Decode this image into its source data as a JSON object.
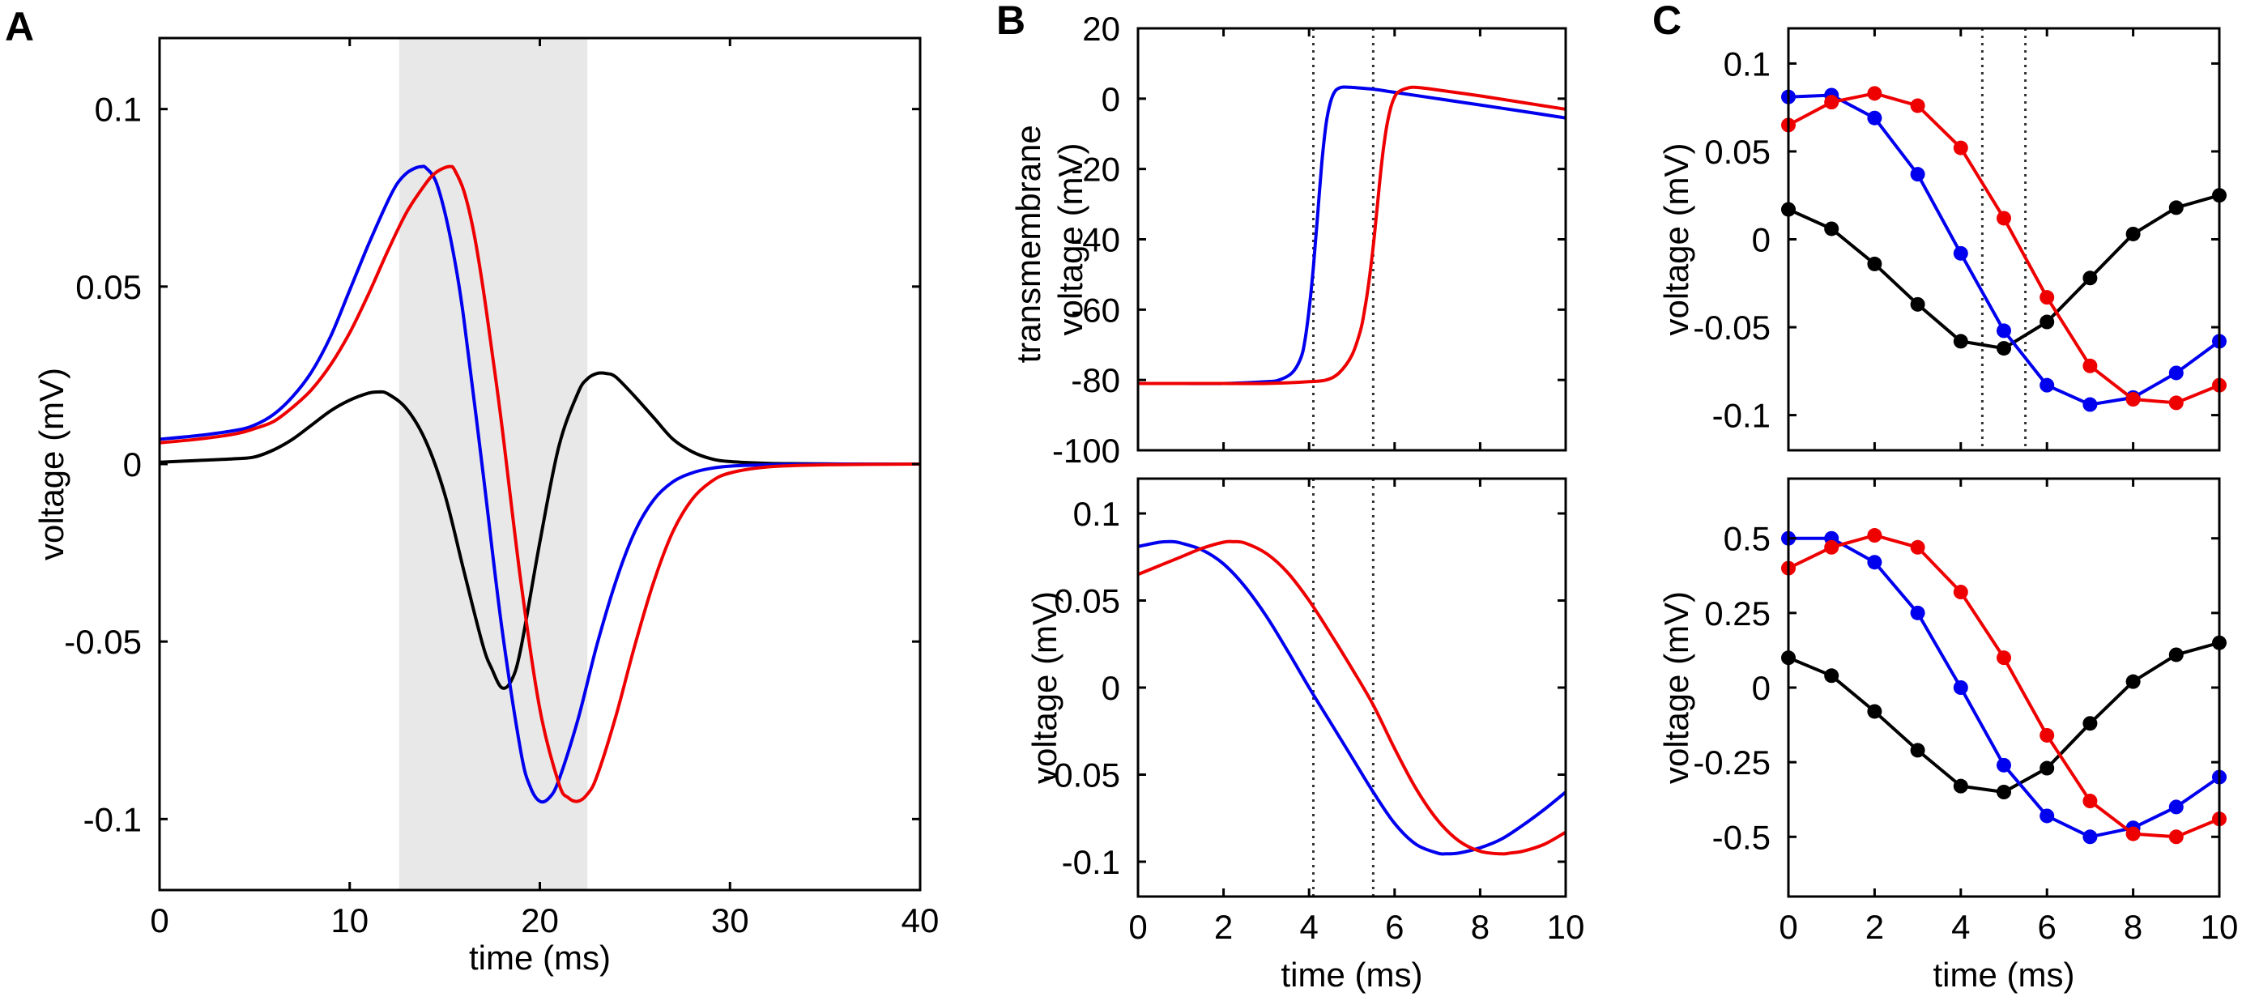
{
  "panels": {
    "A": {
      "letter": "A"
    },
    "B": {
      "letter": "B"
    },
    "C": {
      "letter": "C"
    }
  },
  "colors": {
    "black": "#000000",
    "blue": "#0000ee",
    "red": "#ee0000",
    "shade": "#e8e8e8",
    "dotted": "#333333"
  },
  "chart_data": [
    {
      "id": "A",
      "type": "line",
      "xlabel": "time (ms)",
      "ylabel": "voltage (mV)",
      "xlim": [
        0,
        40
      ],
      "ylim": [
        -0.12,
        0.12
      ],
      "xticks": [
        0,
        10,
        20,
        30,
        40
      ],
      "xtick_labels": [
        "0",
        "10",
        "20",
        "30",
        "40"
      ],
      "yticks": [
        -0.1,
        -0.05,
        0,
        0.05,
        0.1
      ],
      "ytick_labels": [
        "-0.1",
        "-0.05",
        "0",
        "0.05",
        "0.1"
      ],
      "shaded_region": [
        12.6,
        22.5
      ],
      "series": [
        {
          "name": "black",
          "color": "black",
          "x": [
            0,
            2,
            4,
            5,
            6,
            7,
            8,
            9,
            10,
            11,
            11.5,
            12,
            13,
            14,
            15,
            16,
            17,
            17.5,
            18,
            18.5,
            19,
            20,
            21,
            22,
            22.5,
            23,
            23.5,
            24,
            25,
            26,
            27,
            28,
            29,
            30,
            32,
            34,
            36,
            40
          ],
          "y": [
            0.0005,
            0.001,
            0.0015,
            0.002,
            0.004,
            0.007,
            0.011,
            0.015,
            0.018,
            0.02,
            0.0203,
            0.0198,
            0.0155,
            0.0065,
            -0.0085,
            -0.03,
            -0.051,
            -0.058,
            -0.063,
            -0.061,
            -0.052,
            -0.022,
            0.005,
            0.02,
            0.024,
            0.0255,
            0.0255,
            0.0245,
            0.019,
            0.013,
            0.007,
            0.0035,
            0.0015,
            0.0007,
            0.0002,
            0.0001,
            0,
            0
          ]
        },
        {
          "name": "blue",
          "color": "blue",
          "x": [
            0,
            2,
            4,
            5,
            6,
            7,
            8,
            9,
            10,
            11,
            12,
            12.5,
            13,
            13.5,
            13.8,
            14,
            14.5,
            15,
            15.5,
            16,
            17,
            18,
            19,
            19.5,
            20,
            20.5,
            21,
            22,
            23,
            24,
            25,
            26,
            27,
            28,
            29,
            30,
            32,
            35,
            40
          ],
          "y": [
            0.007,
            0.008,
            0.0095,
            0.011,
            0.014,
            0.019,
            0.026,
            0.036,
            0.049,
            0.062,
            0.074,
            0.079,
            0.082,
            0.0835,
            0.0838,
            0.0835,
            0.08,
            0.071,
            0.058,
            0.041,
            -0.002,
            -0.046,
            -0.081,
            -0.091,
            -0.095,
            -0.094,
            -0.089,
            -0.072,
            -0.051,
            -0.033,
            -0.019,
            -0.01,
            -0.005,
            -0.0025,
            -0.0012,
            -0.0006,
            -0.0002,
            0,
            0
          ]
        },
        {
          "name": "red",
          "color": "red",
          "x": [
            0,
            2,
            4,
            5,
            6,
            7,
            8,
            9,
            10,
            11,
            12,
            13,
            14,
            14.5,
            15,
            15.3,
            15.5,
            16,
            16.5,
            17,
            17.5,
            18,
            19,
            20,
            21,
            21.5,
            22,
            22.5,
            23,
            24,
            25,
            26,
            27,
            28,
            29,
            30,
            32,
            35,
            40
          ],
          "y": [
            0.006,
            0.007,
            0.0085,
            0.01,
            0.012,
            0.016,
            0.021,
            0.028,
            0.037,
            0.048,
            0.06,
            0.071,
            0.079,
            0.082,
            0.0835,
            0.0838,
            0.083,
            0.077,
            0.066,
            0.05,
            0.031,
            0.011,
            -0.033,
            -0.069,
            -0.09,
            -0.094,
            -0.095,
            -0.093,
            -0.088,
            -0.071,
            -0.051,
            -0.033,
            -0.019,
            -0.01,
            -0.005,
            -0.0025,
            -0.0008,
            -0.0002,
            0
          ]
        }
      ]
    },
    {
      "id": "B_top",
      "type": "line",
      "xlabel": "",
      "ylabel": "transmembrane voltage (mV)",
      "ylabel_lines": [
        "transmembrane",
        "voltage (mV)"
      ],
      "xlim": [
        0,
        10
      ],
      "ylim": [
        -100,
        20
      ],
      "xticks": [
        0,
        2,
        4,
        6,
        8,
        10
      ],
      "xtick_labels": [
        "",
        "",
        "",
        "",
        "",
        ""
      ],
      "yticks": [
        -100,
        -80,
        -60,
        -40,
        -20,
        0,
        20
      ],
      "ytick_labels": [
        "-100",
        "-80",
        "-60",
        "-40",
        "-20",
        "0",
        "20"
      ],
      "vlines": [
        4.1,
        5.5
      ],
      "series": [
        {
          "name": "blue",
          "color": "blue",
          "x": [
            0,
            1,
            2,
            3,
            3.3,
            3.6,
            3.8,
            3.9,
            4.0,
            4.1,
            4.2,
            4.3,
            4.4,
            4.5,
            4.6,
            4.7,
            4.8,
            5.0,
            5.5,
            6,
            7,
            8,
            9,
            10
          ],
          "y": [
            -81,
            -81,
            -81,
            -80.5,
            -80,
            -78,
            -74,
            -69,
            -60,
            -48,
            -33,
            -18,
            -7,
            -1,
            2,
            3,
            3.3,
            3.2,
            2.7,
            1.8,
            0,
            -1.8,
            -3.6,
            -5.5
          ]
        },
        {
          "name": "red",
          "color": "red",
          "x": [
            0,
            1,
            2,
            3,
            4,
            4.4,
            4.7,
            5.0,
            5.2,
            5.3,
            5.4,
            5.5,
            5.6,
            5.7,
            5.8,
            5.9,
            6.0,
            6.1,
            6.3,
            6.5,
            7,
            8,
            9,
            10
          ],
          "y": [
            -81,
            -81,
            -81,
            -81,
            -80.5,
            -80,
            -78,
            -73,
            -66,
            -60,
            -52,
            -42,
            -30,
            -18,
            -9,
            -3,
            0.5,
            2,
            3,
            3.2,
            2.5,
            0.8,
            -1.1,
            -3
          ]
        }
      ]
    },
    {
      "id": "B_bottom",
      "type": "line",
      "xlabel": "time (ms)",
      "ylabel": "voltage (mV)",
      "xlim": [
        0,
        10
      ],
      "ylim": [
        -0.12,
        0.12
      ],
      "xticks": [
        0,
        2,
        4,
        6,
        8,
        10
      ],
      "xtick_labels": [
        "0",
        "2",
        "4",
        "6",
        "8",
        "10"
      ],
      "yticks": [
        -0.1,
        -0.05,
        0,
        0.05,
        0.1
      ],
      "ytick_labels": [
        "-0.1",
        "-0.05",
        "0",
        "0.05",
        "0.1"
      ],
      "vlines": [
        4.1,
        5.5
      ],
      "series": [
        {
          "name": "blue",
          "color": "blue",
          "x": [
            0,
            0.5,
            0.8,
            1,
            1.5,
            2,
            2.5,
            3,
            3.5,
            4,
            4.5,
            5,
            5.5,
            6,
            6.5,
            7,
            7.2,
            7.5,
            8,
            8.5,
            9,
            9.5,
            10
          ],
          "y": [
            0.081,
            0.0835,
            0.0838,
            0.083,
            0.079,
            0.071,
            0.058,
            0.041,
            0.021,
            0.0,
            -0.02,
            -0.04,
            -0.06,
            -0.078,
            -0.09,
            -0.095,
            -0.0955,
            -0.095,
            -0.092,
            -0.087,
            -0.079,
            -0.07,
            -0.06
          ]
        },
        {
          "name": "red",
          "color": "red",
          "x": [
            0,
            0.5,
            1,
            1.5,
            2,
            2.2,
            2.5,
            3,
            3.5,
            4,
            4.5,
            5,
            5.5,
            6,
            6.5,
            7,
            7.5,
            8,
            8.5,
            8.7,
            9,
            9.5,
            10
          ],
          "y": [
            0.065,
            0.07,
            0.075,
            0.08,
            0.0835,
            0.0838,
            0.083,
            0.077,
            0.066,
            0.05,
            0.031,
            0.011,
            -0.01,
            -0.035,
            -0.058,
            -0.076,
            -0.088,
            -0.094,
            -0.0955,
            -0.095,
            -0.094,
            -0.09,
            -0.083
          ]
        }
      ]
    },
    {
      "id": "C_top",
      "type": "line",
      "xlabel": "",
      "ylabel": "voltage (mV)",
      "xlim": [
        0,
        10
      ],
      "ylim": [
        -0.12,
        0.12
      ],
      "xticks": [
        0,
        2,
        4,
        6,
        8,
        10
      ],
      "xtick_labels": [
        "",
        "",
        "",
        "",
        "",
        ""
      ],
      "yticks": [
        -0.1,
        -0.05,
        0,
        0.05,
        0.1
      ],
      "ytick_labels": [
        "-0.1",
        "-0.05",
        "0",
        "0.05",
        "0.1"
      ],
      "vlines": [
        4.5,
        5.5
      ],
      "markers": true,
      "series": [
        {
          "name": "black",
          "color": "black",
          "x": [
            0,
            1,
            2,
            3,
            4,
            5,
            6,
            7,
            8,
            9,
            10
          ],
          "y": [
            0.017,
            0.006,
            -0.014,
            -0.037,
            -0.058,
            -0.062,
            -0.047,
            -0.022,
            0.003,
            0.018,
            0.025
          ]
        },
        {
          "name": "blue",
          "color": "blue",
          "x": [
            0,
            1,
            2,
            3,
            4,
            5,
            6,
            7,
            8,
            9,
            10
          ],
          "y": [
            0.081,
            0.082,
            0.069,
            0.037,
            -0.008,
            -0.052,
            -0.083,
            -0.094,
            -0.09,
            -0.076,
            -0.058
          ]
        },
        {
          "name": "red",
          "color": "red",
          "x": [
            0,
            1,
            2,
            3,
            4,
            5,
            6,
            7,
            8,
            9,
            10
          ],
          "y": [
            0.065,
            0.078,
            0.083,
            0.076,
            0.052,
            0.012,
            -0.033,
            -0.072,
            -0.091,
            -0.093,
            -0.083
          ]
        }
      ]
    },
    {
      "id": "C_bottom",
      "type": "line",
      "xlabel": "time (ms)",
      "ylabel": "voltage (mV)",
      "xlim": [
        0,
        10
      ],
      "ylim": [
        -0.7,
        0.7
      ],
      "xticks": [
        0,
        2,
        4,
        6,
        8,
        10
      ],
      "xtick_labels": [
        "0",
        "2",
        "4",
        "6",
        "8",
        "10"
      ],
      "yticks": [
        -0.5,
        -0.25,
        0,
        0.25,
        0.5
      ],
      "ytick_labels": [
        "-0.5",
        "-0.25",
        "0",
        "0.25",
        "0.5"
      ],
      "markers": true,
      "series": [
        {
          "name": "black",
          "color": "black",
          "x": [
            0,
            1,
            2,
            3,
            4,
            5,
            6,
            7,
            8,
            9,
            10
          ],
          "y": [
            0.1,
            0.04,
            -0.08,
            -0.21,
            -0.33,
            -0.35,
            -0.27,
            -0.12,
            0.02,
            0.11,
            0.15
          ]
        },
        {
          "name": "blue",
          "color": "blue",
          "x": [
            0,
            1,
            2,
            3,
            4,
            5,
            6,
            7,
            8,
            9,
            10
          ],
          "y": [
            0.5,
            0.5,
            0.42,
            0.25,
            0.0,
            -0.26,
            -0.43,
            -0.5,
            -0.47,
            -0.4,
            -0.3
          ]
        },
        {
          "name": "red",
          "color": "red",
          "x": [
            0,
            1,
            2,
            3,
            4,
            5,
            6,
            7,
            8,
            9,
            10
          ],
          "y": [
            0.4,
            0.47,
            0.51,
            0.47,
            0.32,
            0.1,
            -0.16,
            -0.38,
            -0.49,
            -0.5,
            -0.44
          ]
        }
      ]
    }
  ]
}
